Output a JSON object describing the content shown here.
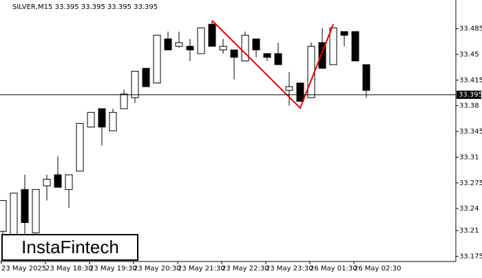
{
  "chart_data": {
    "type": "candlestick",
    "title": "SILVER,M15  33.395 33.395 33.395 33.395",
    "categories": [
      "23 May 2025",
      null,
      null,
      null,
      "23 May 18:30",
      null,
      null,
      null,
      "23 May 19:30",
      null,
      null,
      null,
      "23 May 20:30",
      null,
      null,
      null,
      "23 May 21:30",
      null,
      null,
      null,
      "23 May 22:30",
      null,
      null,
      null,
      "23 May 23:30",
      null,
      null,
      null,
      "26 May 01:30",
      null,
      null,
      null,
      "26 May 02:30",
      null
    ],
    "open": [
      33.209,
      33.188,
      33.266,
      33.207,
      33.271,
      33.286,
      33.266,
      33.291,
      33.351,
      33.376,
      33.346,
      33.376,
      33.391,
      33.431,
      33.411,
      33.471,
      33.461,
      33.461,
      33.451,
      33.491,
      33.456,
      33.456,
      33.441,
      33.471,
      33.451,
      33.451,
      33.401,
      33.411,
      33.391,
      33.466,
      33.436,
      33.481,
      33.481,
      33.436
    ],
    "high": [
      33.251,
      33.261,
      33.286,
      33.266,
      33.286,
      33.311,
      33.286,
      33.356,
      33.371,
      33.376,
      33.376,
      33.402,
      33.427,
      33.431,
      33.476,
      33.481,
      33.481,
      33.471,
      33.486,
      33.496,
      33.471,
      33.456,
      33.481,
      33.471,
      33.451,
      33.466,
      33.426,
      33.411,
      33.466,
      33.486,
      33.486,
      33.481,
      33.481,
      33.436
    ],
    "low": [
      33.17,
      33.17,
      33.202,
      33.197,
      33.251,
      33.269,
      33.241,
      33.291,
      33.351,
      33.326,
      33.346,
      33.376,
      33.384,
      33.406,
      33.411,
      33.456,
      33.459,
      33.441,
      33.451,
      33.461,
      33.451,
      33.416,
      33.441,
      33.446,
      33.441,
      33.436,
      33.38,
      33.386,
      33.391,
      33.431,
      33.436,
      33.461,
      33.441,
      33.391
    ],
    "close": [
      33.251,
      33.261,
      33.221,
      33.266,
      33.28,
      33.269,
      33.286,
      33.356,
      33.371,
      33.351,
      33.371,
      33.396,
      33.427,
      33.406,
      33.476,
      33.456,
      33.466,
      33.456,
      33.486,
      33.461,
      33.461,
      33.446,
      33.476,
      33.456,
      33.446,
      33.436,
      33.406,
      33.386,
      33.461,
      33.431,
      33.486,
      33.476,
      33.441,
      33.401
    ],
    "up_color": "#ffffff",
    "down_color": "#000000",
    "ylim": [
      33.168,
      33.524
    ],
    "yticks": [
      33.485,
      33.45,
      33.415,
      33.38,
      33.345,
      33.31,
      33.275,
      33.24,
      33.21,
      33.175
    ],
    "last_price": 33.395,
    "pattern": {
      "color": "#e00000",
      "x": [
        19,
        27,
        30
      ],
      "values": [
        33.496,
        33.377,
        33.491
      ]
    },
    "watermark": "InstaFintech"
  }
}
